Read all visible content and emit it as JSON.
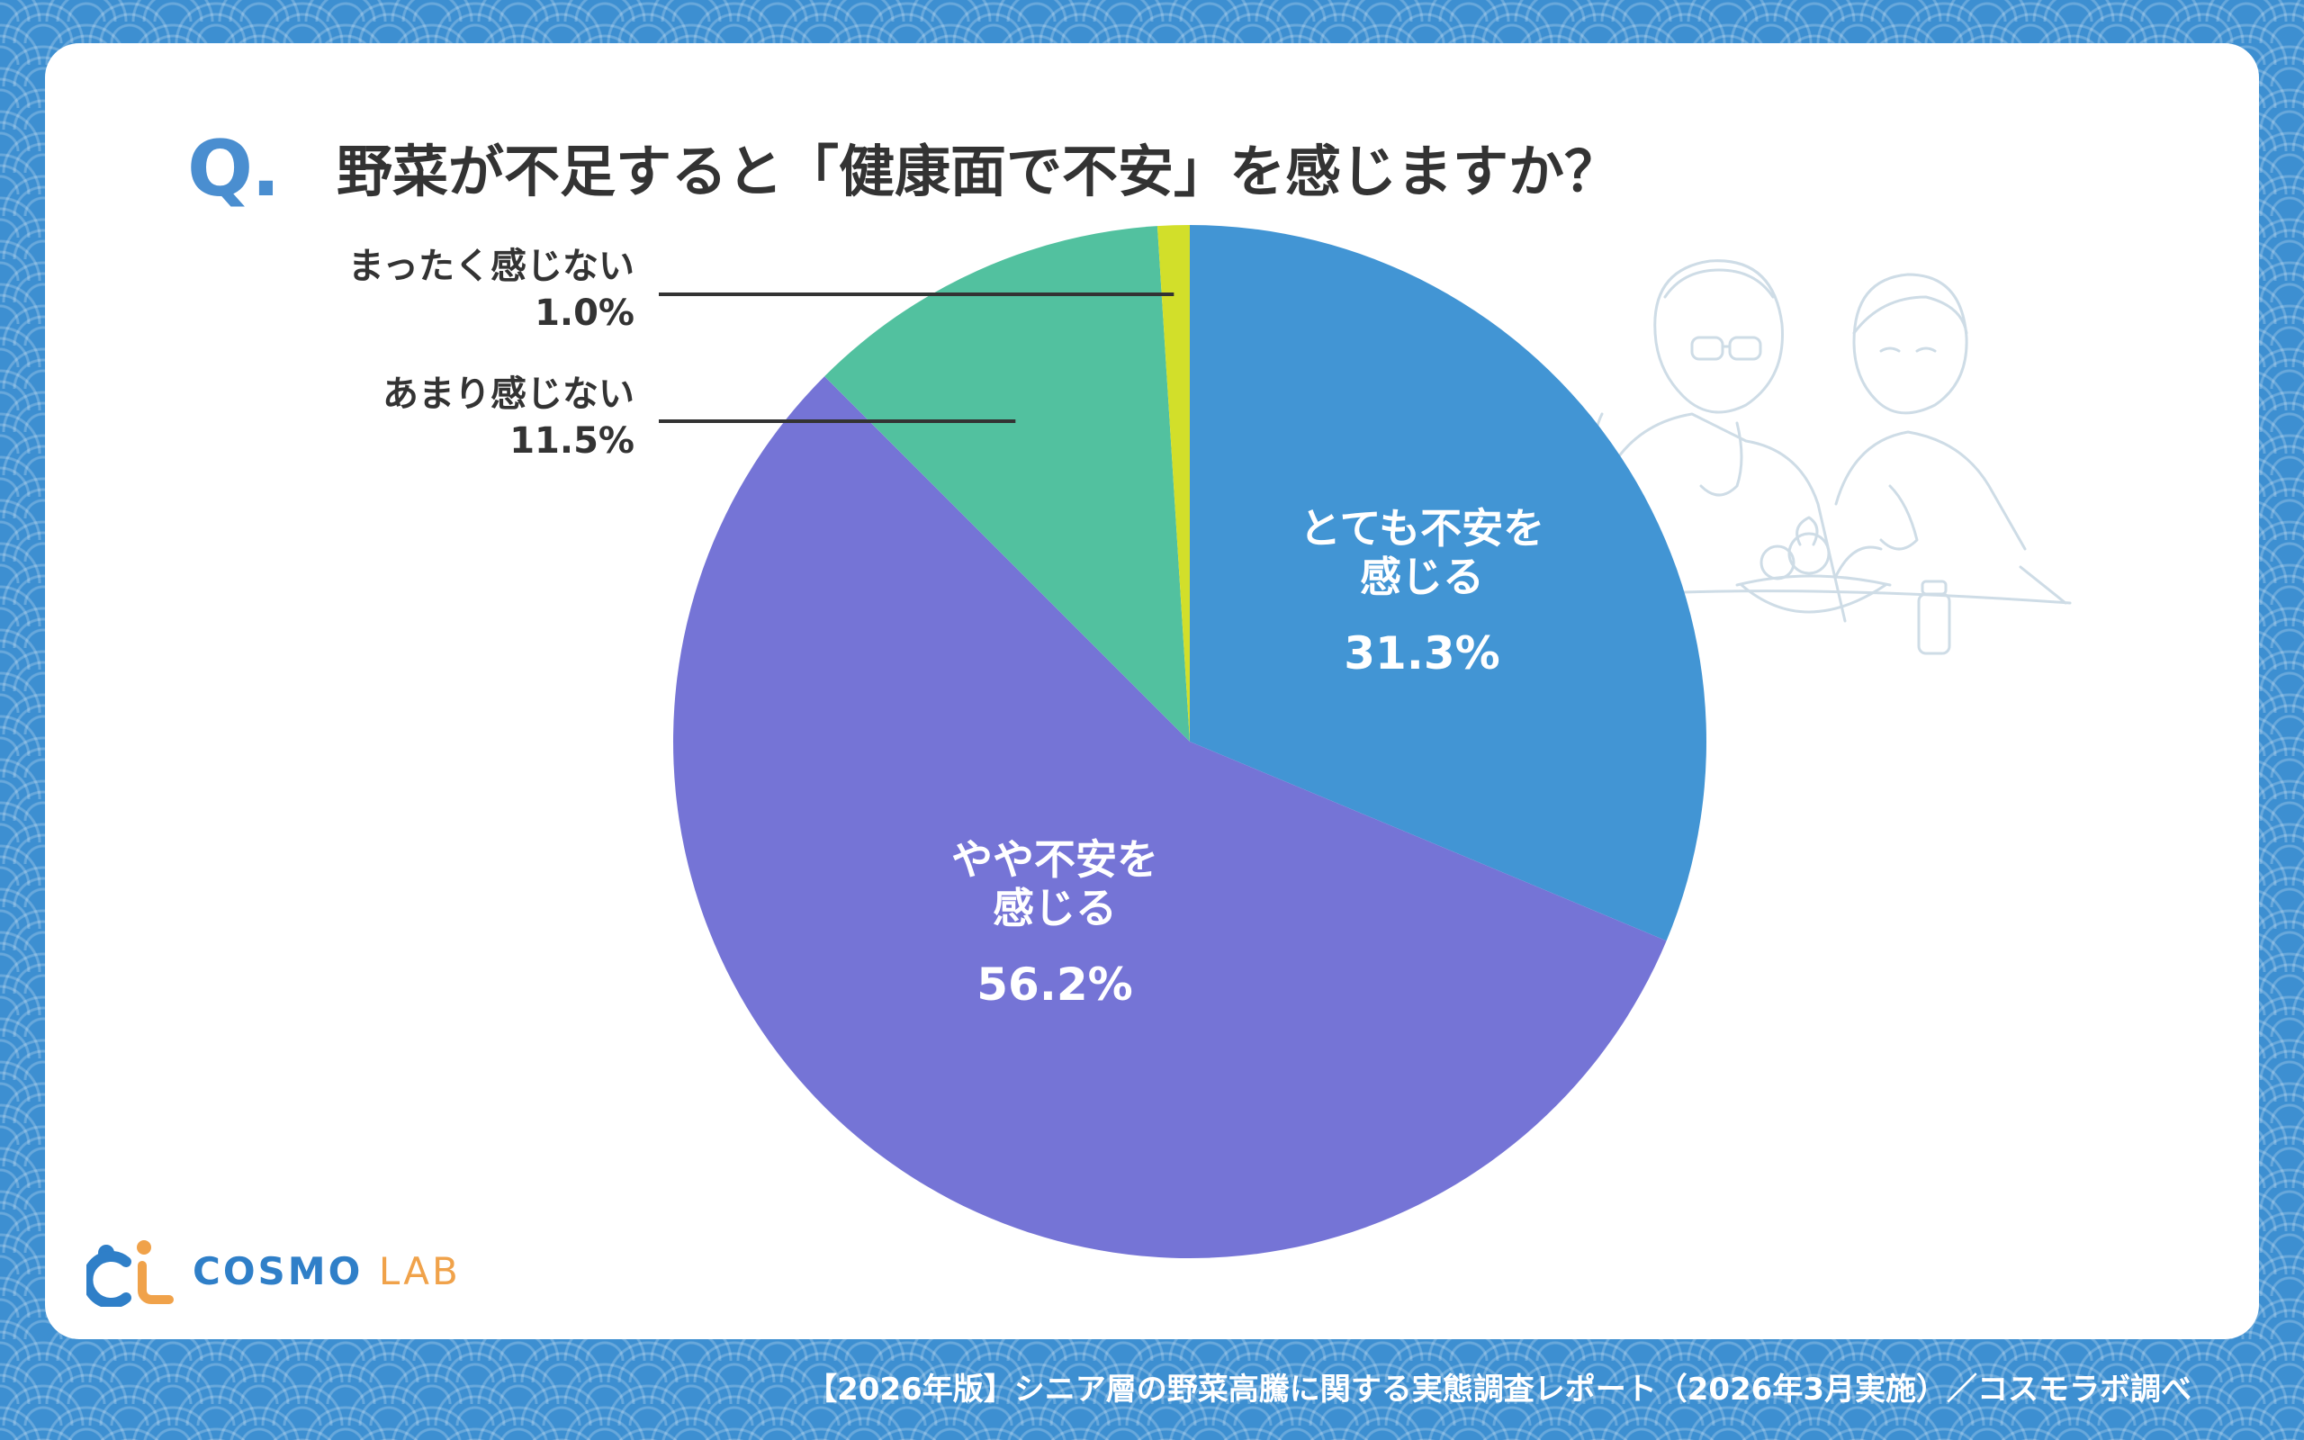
{
  "header": {
    "q_mark": "Q.",
    "title": "野菜が不足すると「健康面で不安」を感じますか？"
  },
  "chart_data": {
    "type": "pie",
    "title": "野菜が不足すると「健康面で不安」を感じますか？",
    "slices": [
      {
        "label_line1": "とても不安を",
        "label_line2": "感じる",
        "value": 31.3,
        "value_text": "31.3%",
        "color": "#4295d4"
      },
      {
        "label_line1": "やや不安を",
        "label_line2": "感じる",
        "value": 56.2,
        "value_text": "56.2%",
        "color": "#7574d6"
      },
      {
        "label_line1": "あまり感じない",
        "label_line2": "",
        "value": 11.5,
        "value_text": "11.5%",
        "color": "#52c19f"
      },
      {
        "label_line1": "まったく感じない",
        "label_line2": "",
        "value": 1.0,
        "value_text": "1.0%",
        "color": "#d2df2a"
      }
    ]
  },
  "logo": {
    "text_a": "COSMO",
    "text_b": "LAB",
    "icon": "cosmo-lab-logo-icon"
  },
  "footer": {
    "source": "【2026年版】シニア層の野菜高騰に関する実態調査レポート（2026年3月実施）／コスモラボ調べ"
  },
  "illustration": {
    "icon": "senior-couple-vegetables-illustration"
  }
}
